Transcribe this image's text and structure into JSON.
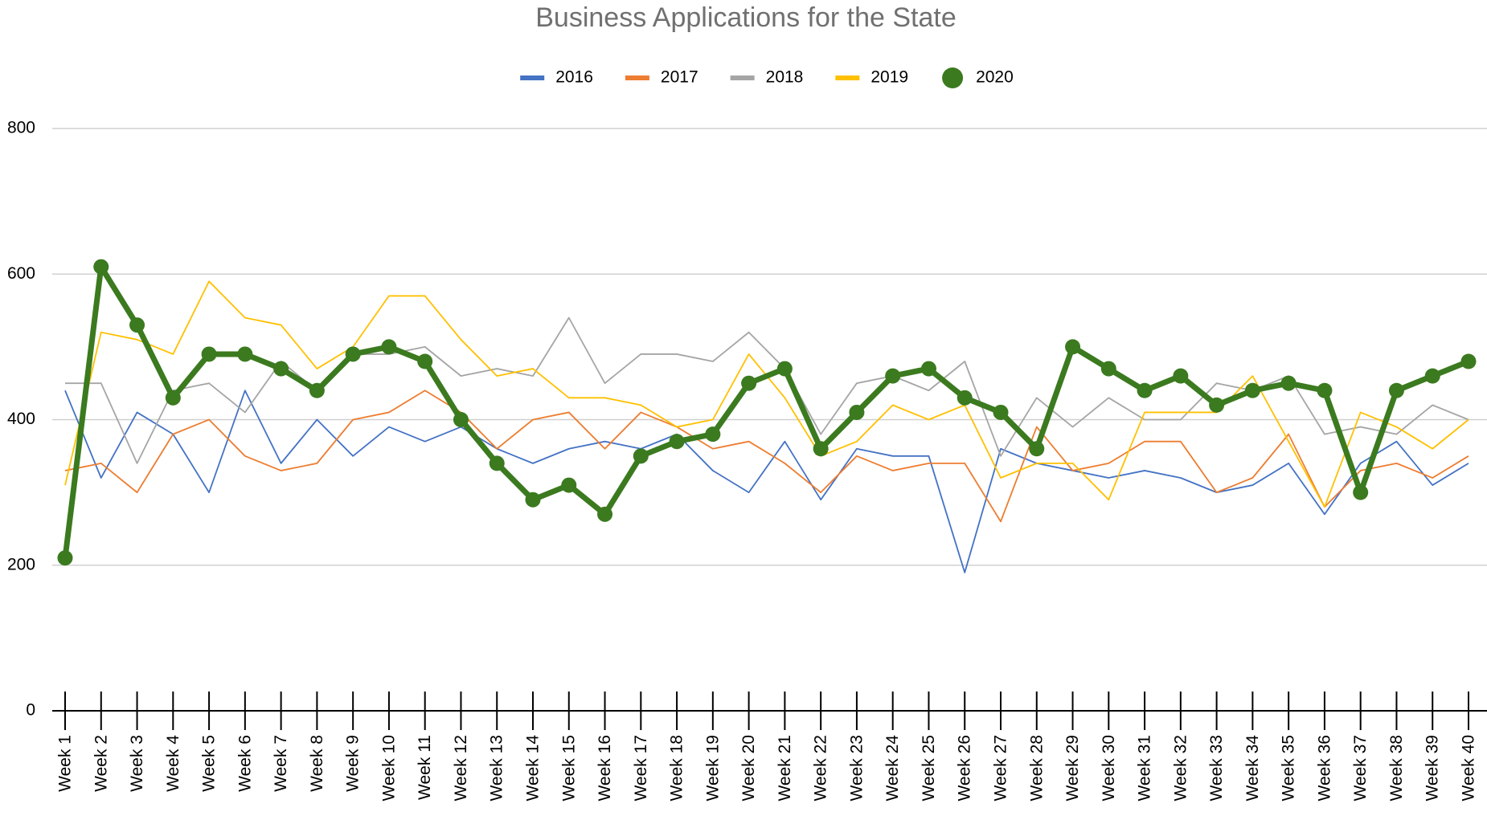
{
  "chart_data": {
    "type": "line",
    "title": "Business Applications for the State",
    "categories": [
      "Week 1",
      "Week 2",
      "Week 3",
      "Week 4",
      "Week 5",
      "Week 6",
      "Week 7",
      "Week 8",
      "Week 9",
      "Week 10",
      "Week 11",
      "Week 12",
      "Week 13",
      "Week 14",
      "Week 15",
      "Week 16",
      "Week 17",
      "Week 18",
      "Week 19",
      "Week 20",
      "Week 21",
      "Week 22",
      "Week 23",
      "Week 24",
      "Week 25",
      "Week 26",
      "Week 27",
      "Week 28",
      "Week 29",
      "Week 30",
      "Week 31",
      "Week 32",
      "Week 33",
      "Week 34",
      "Week 35",
      "Week 36",
      "Week 37",
      "Week 38",
      "Week 39",
      "Week 40"
    ],
    "series": [
      {
        "name": "2016",
        "color": "#4472c4",
        "values": [
          440,
          320,
          410,
          380,
          300,
          440,
          340,
          400,
          350,
          390,
          370,
          390,
          360,
          340,
          360,
          370,
          360,
          380,
          330,
          300,
          370,
          290,
          360,
          350,
          350,
          190,
          360,
          340,
          330,
          320,
          330,
          320,
          300,
          310,
          340,
          270,
          340,
          370,
          310,
          340
        ]
      },
      {
        "name": "2017",
        "color": "#ed7d31",
        "values": [
          330,
          340,
          300,
          380,
          400,
          350,
          330,
          340,
          400,
          410,
          440,
          410,
          360,
          400,
          410,
          360,
          410,
          390,
          360,
          370,
          340,
          300,
          350,
          330,
          340,
          340,
          260,
          390,
          330,
          340,
          370,
          370,
          300,
          320,
          380,
          280,
          330,
          340,
          320,
          350
        ]
      },
      {
        "name": "2018",
        "color": "#a5a5a5",
        "values": [
          450,
          450,
          340,
          440,
          450,
          410,
          480,
          440,
          490,
          490,
          500,
          460,
          470,
          460,
          540,
          450,
          490,
          490,
          480,
          520,
          470,
          380,
          450,
          460,
          440,
          480,
          350,
          430,
          390,
          430,
          400,
          400,
          450,
          440,
          460,
          380,
          390,
          380,
          420,
          400
        ]
      },
      {
        "name": "2019",
        "color": "#ffc000",
        "values": [
          310,
          520,
          510,
          490,
          590,
          540,
          530,
          470,
          500,
          570,
          570,
          510,
          460,
          470,
          430,
          430,
          420,
          390,
          400,
          490,
          430,
          350,
          370,
          420,
          400,
          420,
          320,
          340,
          340,
          290,
          410,
          410,
          410,
          460,
          370,
          280,
          410,
          390,
          360,
          400
        ]
      },
      {
        "name": "2020",
        "color": "#3b7a1f",
        "markers": true,
        "values": [
          210,
          610,
          530,
          430,
          490,
          490,
          470,
          440,
          490,
          500,
          480,
          400,
          340,
          290,
          310,
          270,
          350,
          370,
          380,
          450,
          470,
          360,
          410,
          460,
          470,
          430,
          410,
          360,
          500,
          470,
          440,
          460,
          420,
          440,
          450,
          440,
          300,
          440,
          460,
          480
        ]
      }
    ],
    "ylim": [
      0,
      800
    ],
    "yticks": [
      0,
      200,
      400,
      600,
      800
    ],
    "grid": true,
    "legend": "top"
  }
}
